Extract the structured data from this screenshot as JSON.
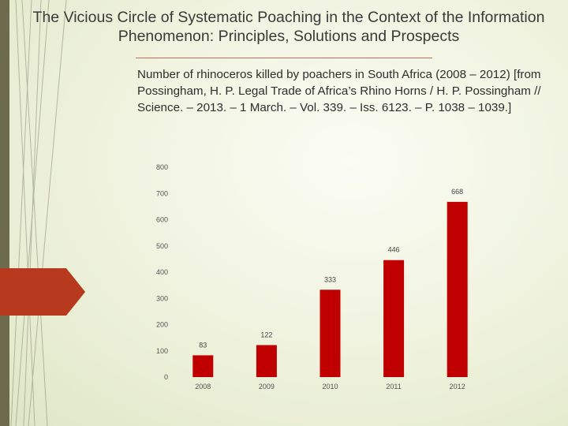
{
  "slide": {
    "title": "The Vicious Circle of Systematic Poaching in the Context of the Information Phenomenon: Principles, Solutions and Prospects",
    "caption": "Number of rhinoceros killed by poachers in South Africa (2008 – 2012) [from Possingham, H. P. Legal Trade of Africa’s Rhino Horns / H. P. Possingham // Science. – 2013. – 1 March. – Vol. 339. – Iss. 6123. – P. 1038 – 1039.]"
  },
  "colors": {
    "bar": "#c00000",
    "accent_arrow": "#b83a1e",
    "rule": "#c96a52"
  },
  "chart_data": {
    "type": "bar",
    "categories": [
      "2008",
      "2009",
      "2010",
      "2011",
      "2012"
    ],
    "values": [
      83,
      122,
      333,
      446,
      668
    ],
    "data_labels": [
      "83",
      "122",
      "333",
      "446",
      "668"
    ],
    "yticks": [
      0,
      100,
      200,
      300,
      400,
      500,
      600,
      700,
      800
    ],
    "ylim": [
      0,
      800
    ],
    "grid": false,
    "legend": "none"
  }
}
